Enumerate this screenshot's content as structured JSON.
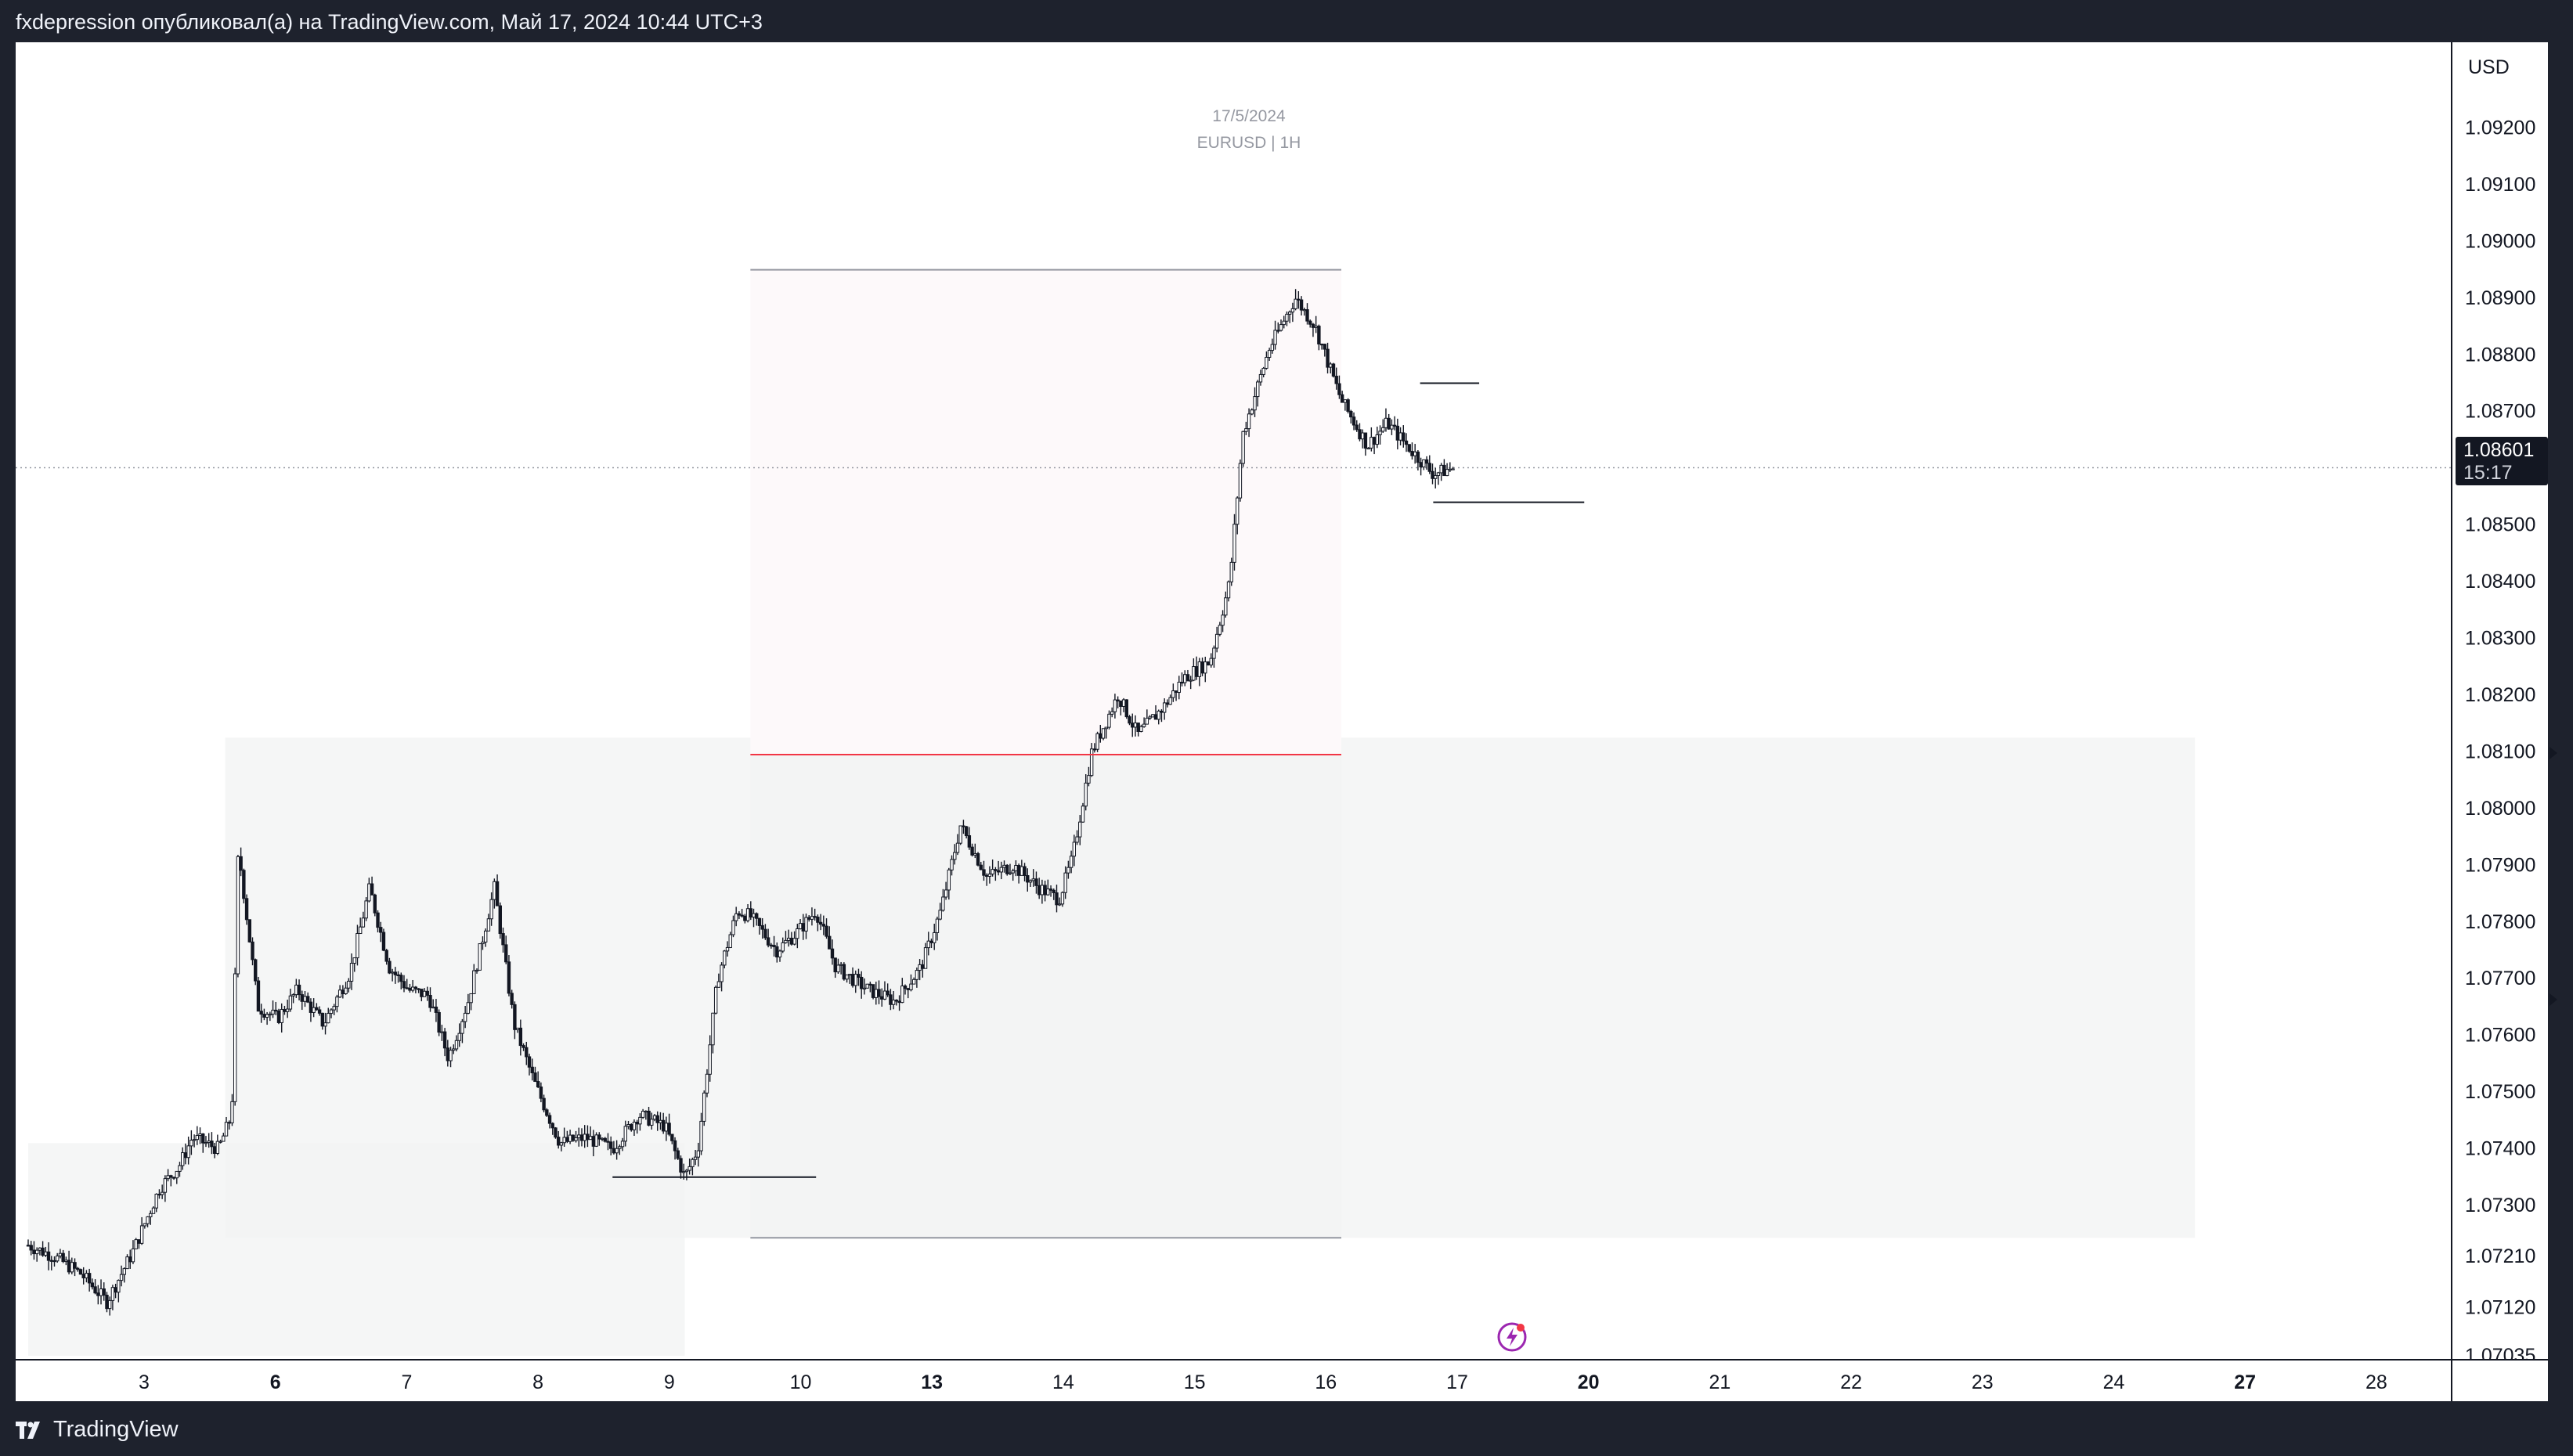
{
  "header": {
    "publisher_text": "fxdepression опубликовал(а) на TradingView.com, Май 17, 2024 10:44 UTC+3"
  },
  "footer": {
    "logo_text": "TradingView",
    "logo_icon": "tradingview-logo-icon"
  },
  "watermark": {
    "date": "17/5/2024",
    "symbol": "EURUSD | 1H"
  },
  "price_axis": {
    "currency": "USD",
    "last_price": "1.08601",
    "countdown": "15:17",
    "ticks": [
      "1.09200",
      "1.09100",
      "1.09000",
      "1.08900",
      "1.08800",
      "1.08700",
      "1.08500",
      "1.08400",
      "1.08300",
      "1.08200",
      "1.08100",
      "1.08000",
      "1.07900",
      "1.07800",
      "1.07700",
      "1.07600",
      "1.07500",
      "1.07400",
      "1.07300",
      "1.07210",
      "1.07120",
      "1.07035"
    ]
  },
  "colors": {
    "background": "#ffffff",
    "candle": "#131722",
    "zone": "#f2f3f3",
    "zone_dark": "#e9eaea",
    "pink_zone": "#fdf9fa",
    "red_line": "#f23645",
    "frame": "#1e222d",
    "alert_icon": "#9c27b0"
  },
  "chart_data": {
    "type": "candlestick",
    "symbol": "EURUSD",
    "interval": "1H",
    "currency": "USD",
    "ylim": [
      1.07035,
      1.0926
    ],
    "last_price": 1.08601,
    "x_tick_labels": [
      {
        "label": "3",
        "bold": false
      },
      {
        "label": "6",
        "bold": true
      },
      {
        "label": "7",
        "bold": false
      },
      {
        "label": "8",
        "bold": false
      },
      {
        "label": "9",
        "bold": false
      },
      {
        "label": "10",
        "bold": false
      },
      {
        "label": "13",
        "bold": true
      },
      {
        "label": "14",
        "bold": false
      },
      {
        "label": "15",
        "bold": false
      },
      {
        "label": "16",
        "bold": false
      },
      {
        "label": "17",
        "bold": false
      },
      {
        "label": "20",
        "bold": true
      },
      {
        "label": "21",
        "bold": false
      },
      {
        "label": "22",
        "bold": false
      },
      {
        "label": "23",
        "bold": false
      },
      {
        "label": "24",
        "bold": false
      },
      {
        "label": "27",
        "bold": true
      },
      {
        "label": "28",
        "bold": false
      }
    ],
    "path_points": [
      [
        0.0,
        1.0723
      ],
      [
        0.2,
        1.0721
      ],
      [
        0.4,
        1.0718
      ],
      [
        0.6,
        1.0713
      ],
      [
        0.8,
        1.0722
      ],
      [
        1.0,
        1.0733
      ],
      [
        1.15,
        1.0737
      ],
      [
        1.25,
        1.0742
      ],
      [
        1.45,
        1.074
      ],
      [
        1.55,
        1.0746
      ],
      [
        1.6,
        1.0793
      ],
      [
        1.75,
        1.0765
      ],
      [
        1.9,
        1.0763
      ],
      [
        2.05,
        1.0768
      ],
      [
        2.25,
        1.0762
      ],
      [
        2.45,
        1.0771
      ],
      [
        2.6,
        1.0786
      ],
      [
        2.75,
        1.0772
      ],
      [
        2.9,
        1.0768
      ],
      [
        3.05,
        1.0767
      ],
      [
        3.2,
        1.0756
      ],
      [
        3.35,
        1.0766
      ],
      [
        3.55,
        1.0786
      ],
      [
        3.7,
        1.0762
      ],
      [
        3.85,
        1.0752
      ],
      [
        4.05,
        1.0741
      ],
      [
        4.25,
        1.0742
      ],
      [
        4.45,
        1.074
      ],
      [
        4.65,
        1.0746
      ],
      [
        4.85,
        1.0744
      ],
      [
        5.0,
        1.0735
      ],
      [
        5.1,
        1.074
      ],
      [
        5.25,
        1.077
      ],
      [
        5.4,
        1.0782
      ],
      [
        5.5,
        1.0781
      ],
      [
        5.7,
        1.0775
      ],
      [
        5.85,
        1.0778
      ],
      [
        6.0,
        1.0782
      ],
      [
        6.15,
        1.0772
      ],
      [
        6.4,
        1.0768
      ],
      [
        6.6,
        1.0766
      ],
      [
        6.8,
        1.0772
      ],
      [
        6.95,
        1.0782
      ],
      [
        7.1,
        1.0797
      ],
      [
        7.3,
        1.0788
      ],
      [
        7.5,
        1.079
      ],
      [
        7.7,
        1.0786
      ],
      [
        7.85,
        1.0784
      ],
      [
        7.95,
        1.0791
      ],
      [
        8.1,
        1.081
      ],
      [
        8.3,
        1.082
      ],
      [
        8.45,
        1.0813
      ],
      [
        8.65,
        1.0818
      ],
      [
        8.8,
        1.0823
      ],
      [
        9.0,
        1.0826
      ],
      [
        9.15,
        1.084
      ],
      [
        9.25,
        1.0866
      ],
      [
        9.45,
        1.0881
      ],
      [
        9.65,
        1.089
      ],
      [
        9.8,
        1.0885
      ],
      [
        10.0,
        1.0872
      ],
      [
        10.2,
        1.0864
      ],
      [
        10.35,
        1.0868
      ],
      [
        10.5,
        1.0864
      ],
      [
        10.7,
        1.0859
      ],
      [
        10.85,
        1.086
      ]
    ],
    "candle_count": 490,
    "annotations": [
      {
        "kind": "zone",
        "from_x": 1.5,
        "to_x": 16.5,
        "from_y": 1.07243,
        "to_y": 1.08125
      },
      {
        "kind": "zone",
        "from_x": 0.0,
        "to_x": 5.0,
        "from_y": 1.07035,
        "to_y": 1.0741
      },
      {
        "kind": "zone",
        "from_x": 5.5,
        "to_x": 10.0,
        "from_y": 1.07243,
        "to_y": 1.08095
      },
      {
        "kind": "zone_pink",
        "from_x": 5.5,
        "to_x": 10.0,
        "from_y": 1.08095,
        "to_y": 1.0895
      },
      {
        "kind": "hline",
        "x1": 5.5,
        "x2": 10.0,
        "y": 1.0895,
        "color": "#9598a1"
      },
      {
        "kind": "hline",
        "x1": 5.5,
        "x2": 10.0,
        "y": 1.08095,
        "color": "#f23645"
      },
      {
        "kind": "hline",
        "x1": 5.5,
        "x2": 10.0,
        "y": 1.07243,
        "color": "#9598a1"
      },
      {
        "kind": "hline",
        "x1": 4.45,
        "x2": 6.0,
        "y": 1.0735,
        "color": "#131722"
      },
      {
        "kind": "hline",
        "x1": 10.7,
        "x2": 11.85,
        "y": 1.0854,
        "color": "#131722"
      },
      {
        "kind": "hline",
        "x1": 10.6,
        "x2": 11.05,
        "y": 1.0875,
        "color": "#131722"
      }
    ],
    "alert_icon": "flash-alert-icon"
  }
}
